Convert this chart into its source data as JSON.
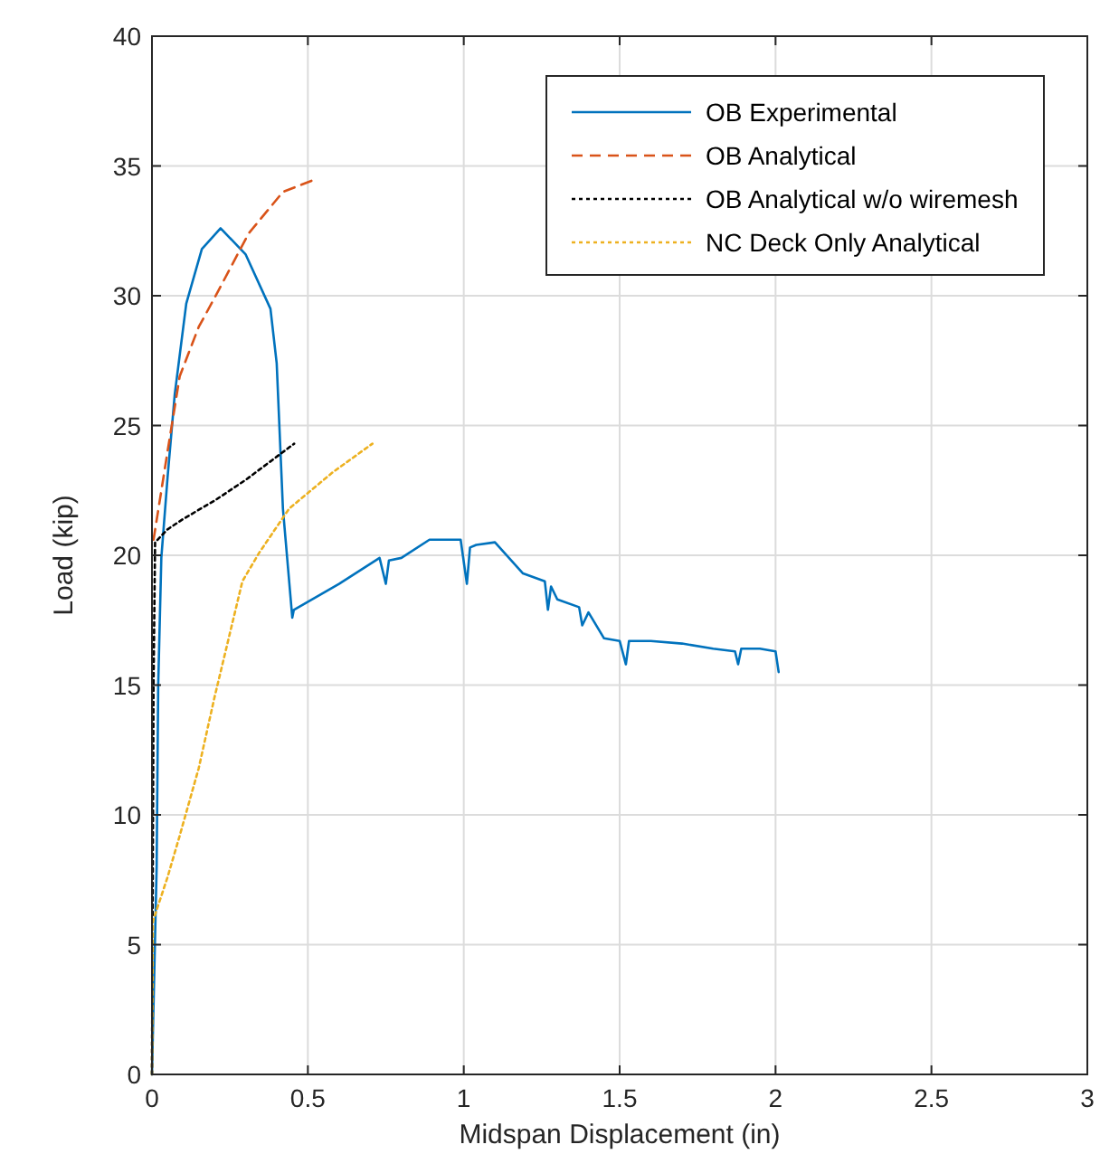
{
  "chart_data": {
    "type": "line",
    "xlabel": "Midspan Displacement (in)",
    "ylabel": "Load (kip)",
    "xlim": [
      0,
      3
    ],
    "ylim": [
      0,
      40
    ],
    "xticks": [
      0,
      0.5,
      1,
      1.5,
      2,
      2.5,
      3
    ],
    "yticks": [
      0,
      5,
      10,
      15,
      20,
      25,
      30,
      35,
      40
    ],
    "grid": true,
    "legend": "top right",
    "series": [
      {
        "name": "OB Experimental",
        "color": "#0072bd",
        "line_style": "solid",
        "x": [
          0,
          0.015,
          0.02,
          0.03,
          0.05,
          0.073,
          0.11,
          0.16,
          0.22,
          0.3,
          0.38,
          0.4,
          0.42,
          0.45,
          0.455,
          0.6,
          0.73,
          0.75,
          0.76,
          0.8,
          0.89,
          0.99,
          1.01,
          1.02,
          1.04,
          1.1,
          1.19,
          1.26,
          1.27,
          1.28,
          1.3,
          1.37,
          1.38,
          1.4,
          1.45,
          1.5,
          1.52,
          1.53,
          1.6,
          1.7,
          1.8,
          1.87,
          1.88,
          1.89,
          1.95,
          2,
          2.01
        ],
        "values": [
          0,
          8,
          15,
          19.9,
          23,
          26.2,
          29.7,
          31.8,
          32.6,
          31.6,
          29.5,
          27.4,
          21.8,
          17.6,
          17.9,
          18.9,
          19.9,
          18.9,
          19.8,
          19.9,
          20.6,
          20.6,
          18.9,
          20.3,
          20.4,
          20.5,
          19.3,
          19,
          17.9,
          18.8,
          18.3,
          18,
          17.3,
          17.8,
          16.8,
          16.7,
          15.8,
          16.7,
          16.7,
          16.6,
          16.4,
          16.3,
          15.8,
          16.4,
          16.4,
          16.3,
          15.5
        ]
      },
      {
        "name": "OB Analytical",
        "color": "#d95319",
        "line_style": "dashed",
        "x": [
          0.005,
          0.05,
          0.089,
          0.15,
          0.2,
          0.31,
          0.42,
          0.527
        ],
        "values": [
          20.6,
          24,
          26.9,
          28.8,
          29.9,
          32.4,
          34,
          34.5
        ]
      },
      {
        "name": "OB Analytical w/o wiremesh",
        "color": "#000000",
        "line_style": "dotted",
        "x": [
          0,
          0.005,
          0.01,
          0.05,
          0.1,
          0.2,
          0.3,
          0.456
        ],
        "values": [
          0,
          15,
          20.5,
          21,
          21.4,
          22.1,
          22.9,
          24.3
        ]
      },
      {
        "name": "NC Deck Only Analytical",
        "color": "#edb120",
        "line_style": "dotted",
        "x": [
          0,
          0.003,
          0.05,
          0.089,
          0.15,
          0.2,
          0.25,
          0.29,
          0.344,
          0.44,
          0.58,
          0.707
        ],
        "values": [
          0,
          5.9,
          7.6,
          9.2,
          11.8,
          14.5,
          17,
          19,
          20.1,
          21.8,
          23.2,
          24.3
        ]
      }
    ]
  }
}
